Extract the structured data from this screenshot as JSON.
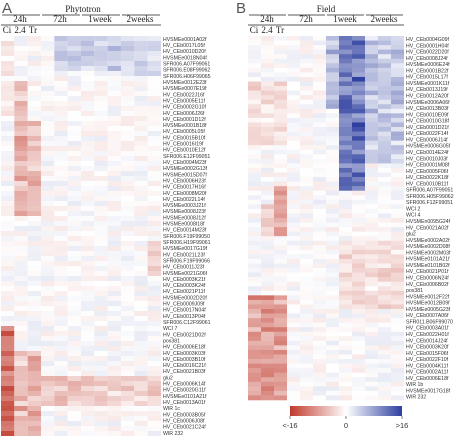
{
  "panel_a": {
    "letter": "A",
    "title": "Phytotron",
    "time_points": [
      "24h",
      "72h",
      "1week",
      "2weeks"
    ],
    "treatments": [
      "Ci",
      "2.4",
      "Tr"
    ],
    "genes": [
      "HVSMEe0001A02f",
      "HV_CEb0017L05f",
      "HV_CEb0010D20f",
      "HVSMEe0018N04f",
      "SFR006.A07F99061",
      "SFR006.E08F99062",
      "SFR006.H06F99065",
      "HVSMEe0012E23f",
      "HVSMEe0007E19f",
      "HV_CEb0022J16f",
      "HV_CEb0005E11f",
      "HV_CEb0002G10f",
      "HV_CEb0006J26f",
      "HV_CEb0001D12f",
      "HVSMEe0001B18f",
      "HV_CEb0005L05f",
      "HV_CEb0015B10f",
      "HV_CEb0016I19f",
      "HV_CEb0010E12f",
      "SFR006.E12F99051",
      "HV_CEb0004M23f",
      "HVSMEe0002G13f",
      "HVSMEe0015D07f",
      "HV_CEb0006H23f",
      "HV_CEb0017H16f",
      "HV_CEb0008M20f",
      "HV_CEb0022L14f",
      "HVSMEe0003J21f",
      "HVSMEe0008J23f",
      "HVSMEe0008J12f",
      "HVSMEe0008I18f",
      "HV_CEb0014M23f",
      "SFR006.F19F99050",
      "SFR006.H19F99061",
      "HVSMEe0017G19f",
      "HV_CEb0021L23f",
      "SFR006.F19F99066",
      "HV_CEb0011J23f",
      "HVSMEe0021G06f",
      "HV_CEb0003K21f",
      "HV_CEb0003K24f",
      "HV_CEb0021P11f",
      "HVSMEe0002D20f",
      "HV_CEb0009J09f",
      "HV_CEb0017N04f",
      "HV_CEb0013P04f",
      "SFR006.C12F99061",
      "WCI 7",
      "HV_CEb0021D02f",
      "pox381",
      "HV_CEb0006E18f",
      "HV_CEb0003K03f",
      "HV_CEb0003B10f",
      "HV_CEb0016C21f",
      "HV_CEb0021B03f",
      "glu2",
      "HV_CEb0006K14f",
      "HV_CEb0020G11f",
      "HVSMEe0101A21f",
      "HV_CEb0013A01f",
      "WIR 1c",
      "HV_CEb0003B05f",
      "HV_CEb0006J08f",
      "HV_CEb0021C24f",
      "WIR 232"
    ]
  },
  "panel_b": {
    "letter": "B",
    "title": "Field",
    "time_points": [
      "24h",
      "72h",
      "1week",
      "2weeks"
    ],
    "treatments": [
      "Ci",
      "2.4",
      "Tr"
    ],
    "genes": [
      "HV_CEb0004G09f",
      "HV_CEb0001H04f",
      "HV_CEb0022D20f",
      "HV_CEb0008J24f",
      "HVSMEe0006E24f",
      "HV_CEb0001B22f",
      "HV_CEb0015L17f",
      "HVSMEe0001K11f",
      "HV_CEb0013J19f",
      "HV_CEb0012A20f",
      "HVSMEe0006A06f",
      "HV_CEb0013B03f",
      "HV_CEb0010E09f",
      "HV_CEb0010G18f",
      "HV_CEb0001D21f",
      "HV_CEb0022F14f",
      "HV_CEb0006J14f",
      "HVSMEe0006G05f",
      "HV_CEb0014E24f",
      "HV_CEb0010J03f",
      "HV_CEb0001M08f",
      "HV_CEb0005F06f",
      "HV_CEb0022K18f",
      "HV_CEb0010B11f",
      "SFR006.A07F99051",
      "SFR006.H05F99062",
      "SFR006.F12F99051",
      "WCI 2",
      "WCI 4",
      "HVSMEn0095G24f",
      "HV_CEb0021A02f",
      "glu2",
      "HVSMEe0002A02f",
      "HVSMEe0002D08f",
      "HVSMEe0002M03f",
      "HVSMEe0101A21f",
      "HVSMEe0101B02f",
      "HV_CEb0021P01f",
      "HV_CEb0006N24f",
      "HV_CEb0006B02f",
      "pox381",
      "HVSMEe0012F22f",
      "HVSMEe0012B09f",
      "HVSMEe0005G23f",
      "HV_CEb0007A06f",
      "SFR011.B06F99070",
      "HV_CEb0003A01f",
      "HV_CEb0022H01f",
      "HV_CEb0014J24f",
      "HV_CEb0003K20f",
      "HV_CEb0015F06f",
      "HV_CEb0022F10f",
      "HV_CEb0004K11f",
      "HV_CEb0002A11f",
      "HV_CEb0006E18f",
      "WIR 1b",
      "HVSMEe0017G18f",
      "WIR 232"
    ]
  },
  "legend": {
    "tick_labels": [
      "<-16",
      "0",
      ">16"
    ],
    "colors": {
      "low": "#c0392b",
      "mid": "#ffffff",
      "high": "#2e3f9e"
    }
  }
}
